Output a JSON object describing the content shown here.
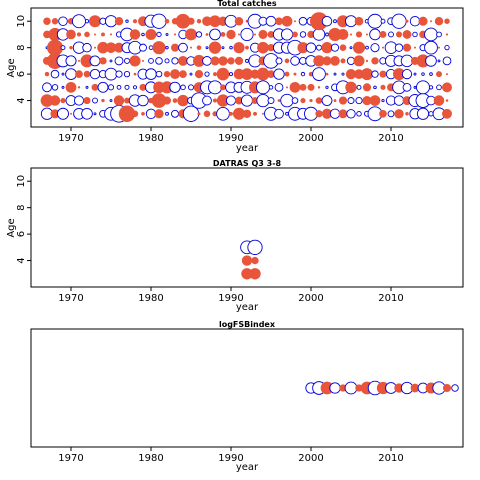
{
  "colors": {
    "residual_positive": "#e8553a",
    "residual_negative": "#0000dd",
    "frame": "#000000"
  },
  "chart_data": [
    {
      "type": "scatter",
      "title": "Total catches",
      "xlabel": "year",
      "ylabel": "Age",
      "xlim": [
        1965,
        2019
      ],
      "ylim": [
        2,
        11
      ],
      "x_ticks": [
        1970,
        1980,
        1990,
        2000,
        2010
      ],
      "y_ticks": [
        4,
        6,
        8,
        10
      ],
      "grid": false,
      "legend": "none",
      "encoding": "bubble residual plot: filled orange = positive residual, open blue circle = negative residual; size = |residual|",
      "years": [
        1967,
        2017
      ],
      "ages": [
        3,
        4,
        5,
        6,
        7,
        8,
        9,
        10
      ],
      "largest_marks": [
        {
          "year": 2001,
          "age": 10,
          "residual": 3.0
        },
        {
          "year": 1976,
          "age": 3,
          "residual": -2.6
        },
        {
          "year": 1977,
          "age": 3,
          "residual": 2.5
        },
        {
          "year": 1968,
          "age": 8,
          "residual": 2.4
        },
        {
          "year": 1968,
          "age": 7,
          "residual": 2.4
        },
        {
          "year": 1986,
          "age": 4,
          "residual": -2.2
        },
        {
          "year": 1985,
          "age": 3,
          "residual": -2.2
        },
        {
          "year": 1984,
          "age": 10,
          "residual": 2.0
        },
        {
          "year": 1998,
          "age": 8,
          "residual": -2.0
        },
        {
          "year": 1995,
          "age": 7,
          "residual": -2.0
        },
        {
          "year": 1981,
          "age": 4,
          "residual": 2.0
        },
        {
          "year": 1981,
          "age": 10,
          "residual": -1.9
        },
        {
          "year": 2011,
          "age": 10,
          "residual": -1.9
        },
        {
          "year": 2008,
          "age": 10,
          "residual": -1.8
        },
        {
          "year": 1993,
          "age": 10,
          "residual": -1.8
        },
        {
          "year": 2008,
          "age": 3,
          "residual": -1.8
        },
        {
          "year": 2014,
          "age": 4,
          "residual": -1.8
        },
        {
          "year": 1968,
          "age": 9,
          "residual": 1.6
        }
      ]
    },
    {
      "type": "scatter",
      "title": "DATRAS Q3 3-8",
      "xlabel": "year",
      "ylabel": "Age",
      "xlim": [
        1965,
        2019
      ],
      "ylim": [
        2,
        11
      ],
      "x_ticks": [
        1970,
        1980,
        1990,
        2000,
        2010
      ],
      "y_ticks": [
        4,
        6,
        8,
        10
      ],
      "grid": false,
      "legend": "none",
      "points": [
        {
          "year": 1992,
          "age": 5,
          "residual": -1.5
        },
        {
          "year": 1993,
          "age": 5,
          "residual": -1.9
        },
        {
          "year": 1992,
          "age": 4,
          "residual": 1.0
        },
        {
          "year": 1993,
          "age": 4,
          "residual": 0.5
        },
        {
          "year": 1992,
          "age": 3,
          "residual": 1.2
        },
        {
          "year": 1993,
          "age": 3,
          "residual": 1.2
        }
      ]
    },
    {
      "type": "scatter",
      "title": "logFSBindex",
      "xlabel": "year",
      "ylabel": "",
      "xlim": [
        1965,
        2019
      ],
      "ylim": [
        0,
        2
      ],
      "x_ticks": [
        1970,
        1980,
        1990,
        2000,
        2010
      ],
      "y_ticks": [],
      "grid": false,
      "legend": "none",
      "points": [
        {
          "year": 2000,
          "y": 1,
          "residual": -1.0
        },
        {
          "year": 2001,
          "y": 1,
          "residual": -1.5
        },
        {
          "year": 2002,
          "y": 1,
          "residual": 1.5
        },
        {
          "year": 2003,
          "y": 1,
          "residual": -1.0
        },
        {
          "year": 2004,
          "y": 1,
          "residual": 0.5
        },
        {
          "year": 2005,
          "y": 1,
          "residual": -1.3
        },
        {
          "year": 2006,
          "y": 1,
          "residual": 0.5
        },
        {
          "year": 2007,
          "y": 1,
          "residual": 1.5
        },
        {
          "year": 2008,
          "y": 1,
          "residual": -1.7
        },
        {
          "year": 2009,
          "y": 1,
          "residual": 1.4
        },
        {
          "year": 2010,
          "y": 1,
          "residual": -1.1
        },
        {
          "year": 2011,
          "y": 1,
          "residual": 0.8
        },
        {
          "year": 2012,
          "y": 1,
          "residual": -1.2
        },
        {
          "year": 2013,
          "y": 1,
          "residual": 0.7
        },
        {
          "year": 2014,
          "y": 1,
          "residual": -0.9
        },
        {
          "year": 2015,
          "y": 1,
          "residual": 1.1
        },
        {
          "year": 2016,
          "y": 1,
          "residual": -1.4
        },
        {
          "year": 2017,
          "y": 1,
          "residual": 0.6
        },
        {
          "year": 2018,
          "y": 1,
          "residual": -0.4
        }
      ]
    }
  ]
}
